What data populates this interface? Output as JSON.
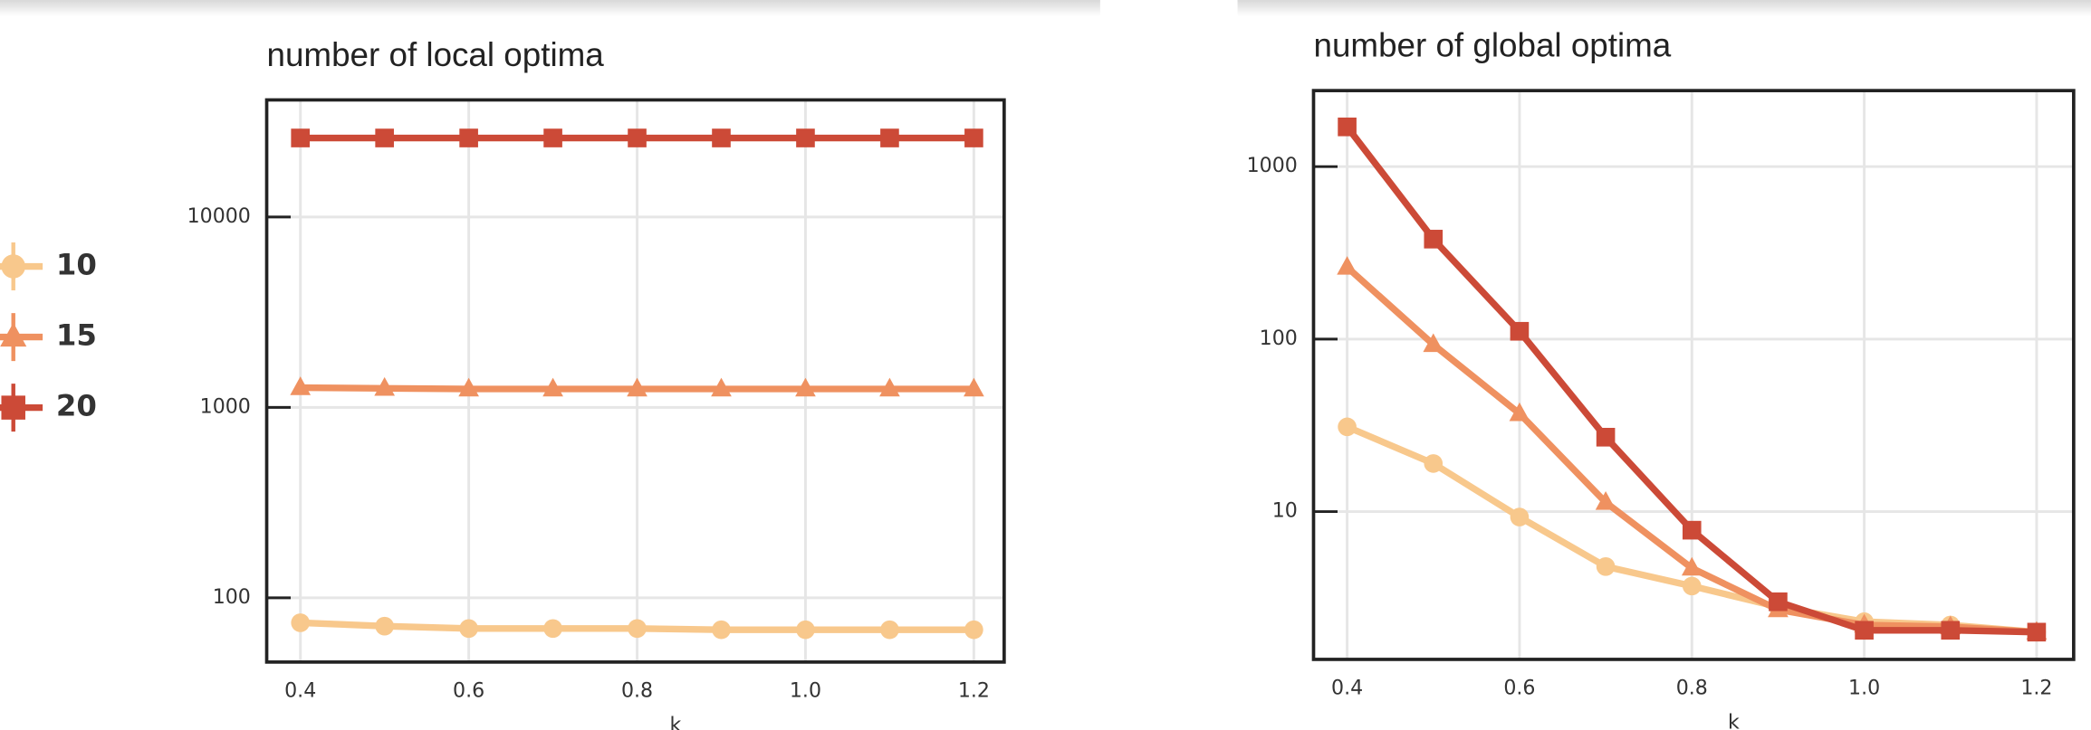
{
  "chart_data": [
    {
      "type": "line",
      "title": "number of local optima",
      "xlabel": "k",
      "ylog": true,
      "grid": true,
      "x": [
        0.4,
        0.5,
        0.6,
        0.7,
        0.8,
        0.9,
        1.0,
        1.1,
        1.2
      ],
      "xlim": [
        0.36,
        1.236
      ],
      "ylim": [
        46,
        41200
      ],
      "xticks": [
        0.4,
        0.6,
        0.8,
        {
          "value": 1,
          "label": "1.0"
        },
        1.2
      ],
      "yticks": [
        100,
        1000,
        10000
      ],
      "series": [
        {
          "name": "10",
          "color": "#f8c88c",
          "marker": "circle",
          "values": [
            74,
            71,
            69,
            69,
            69,
            68,
            68,
            68,
            68
          ]
        },
        {
          "name": "15",
          "color": "#ef9160",
          "marker": "triangle",
          "values": [
            1270,
            1260,
            1250,
            1250,
            1250,
            1250,
            1250,
            1250,
            1250
          ]
        },
        {
          "name": "20",
          "color": "#cc4a37",
          "marker": "square",
          "values": [
            26000,
            26000,
            26000,
            26000,
            26000,
            26000,
            26000,
            26000,
            26000
          ]
        }
      ]
    },
    {
      "type": "line",
      "title": "number of global optima",
      "xlabel": "k",
      "ylog": true,
      "grid": true,
      "x": [
        0.4,
        0.5,
        0.6,
        0.7,
        0.8,
        0.9,
        1.0,
        1.1,
        1.2
      ],
      "xlim": [
        0.361,
        1.243
      ],
      "ylim": [
        1.39,
        2760
      ],
      "xticks": [
        0.4,
        0.6,
        0.8,
        {
          "value": 1,
          "label": "1.0"
        },
        1.2
      ],
      "yticks": [
        10,
        100,
        1000
      ],
      "series": [
        {
          "color": "#f8c88c",
          "marker": "circle",
          "values": [
            31,
            19,
            9.3,
            4.8,
            3.7,
            2.8,
            2.3,
            2.2,
            2.0
          ]
        },
        {
          "color": "#ef9160",
          "marker": "triangle",
          "values": [
            261,
            93,
            37,
            11.3,
            4.7,
            2.7,
            2.2,
            2.15,
            2.0
          ]
        },
        {
          "color": "#cc4a37",
          "marker": "square",
          "values": [
            1700,
            380,
            111,
            27,
            7.8,
            3.0,
            2.05,
            2.05,
            2.0
          ]
        }
      ]
    }
  ]
}
